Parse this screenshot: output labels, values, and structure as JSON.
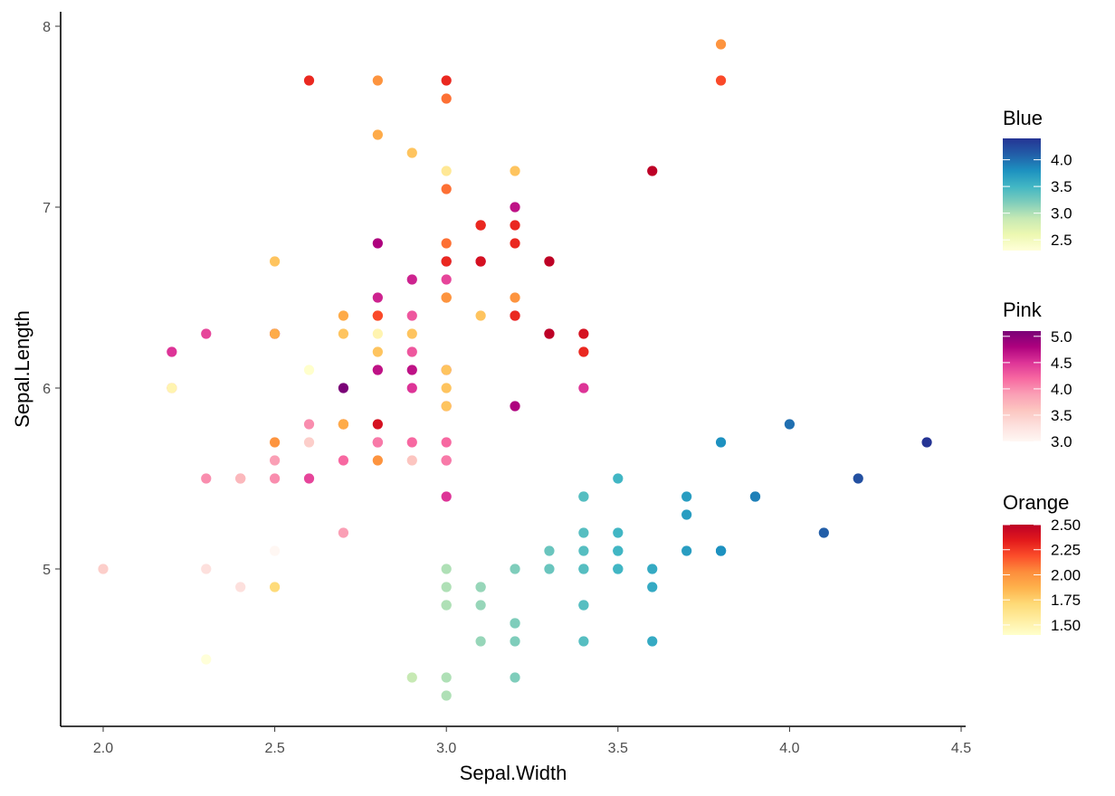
{
  "chart_data": {
    "type": "scatter",
    "xlabel": "Sepal.Width",
    "ylabel": "Sepal.Length",
    "xlim": [
      1.88,
      4.52
    ],
    "ylim": [
      4.13,
      8.08
    ],
    "xticks": [
      "2.0",
      "2.5",
      "3.0",
      "3.5",
      "4.0",
      "4.5"
    ],
    "yticks": [
      "5",
      "6",
      "7",
      "8"
    ],
    "grid": false,
    "legend_position": "right",
    "series": [
      {
        "legend_title": "Blue",
        "palette": [
          "#ffffd9",
          "#edf8b1",
          "#c7e9b4",
          "#7fcdbb",
          "#41b6c4",
          "#1d91c0",
          "#225ea8",
          "#253494"
        ],
        "color_range": [
          2.3,
          4.4
        ],
        "legend_ticks": [
          "2.5",
          "3.0",
          "3.5",
          "4.0"
        ],
        "points": [
          [
            3.5,
            5.1,
            3.5
          ],
          [
            3.0,
            4.9,
            3.0
          ],
          [
            3.2,
            4.7,
            3.2
          ],
          [
            3.1,
            4.6,
            3.1
          ],
          [
            3.6,
            5.0,
            3.6
          ],
          [
            3.9,
            5.4,
            3.9
          ],
          [
            3.4,
            4.6,
            3.4
          ],
          [
            3.4,
            5.0,
            3.4
          ],
          [
            2.9,
            4.4,
            2.9
          ],
          [
            3.1,
            4.9,
            3.1
          ],
          [
            3.7,
            5.4,
            3.7
          ],
          [
            3.4,
            4.8,
            3.4
          ],
          [
            3.0,
            4.8,
            3.0
          ],
          [
            3.0,
            4.3,
            3.0
          ],
          [
            4.0,
            5.8,
            4.0
          ],
          [
            4.4,
            5.7,
            4.4
          ],
          [
            3.9,
            5.4,
            3.9
          ],
          [
            3.5,
            5.1,
            3.5
          ],
          [
            3.8,
            5.7,
            3.8
          ],
          [
            3.8,
            5.1,
            3.8
          ],
          [
            3.4,
            5.4,
            3.4
          ],
          [
            3.7,
            5.1,
            3.7
          ],
          [
            3.6,
            4.6,
            3.6
          ],
          [
            3.3,
            5.1,
            3.3
          ],
          [
            3.4,
            4.8,
            3.4
          ],
          [
            3.0,
            5.0,
            3.0
          ],
          [
            3.4,
            5.0,
            3.4
          ],
          [
            3.5,
            5.2,
            3.5
          ],
          [
            3.4,
            5.2,
            3.4
          ],
          [
            3.2,
            4.7,
            3.2
          ],
          [
            3.1,
            4.8,
            3.1
          ],
          [
            3.4,
            5.4,
            3.4
          ],
          [
            4.1,
            5.2,
            4.1
          ],
          [
            4.2,
            5.5,
            4.2
          ],
          [
            3.1,
            4.9,
            3.1
          ],
          [
            3.2,
            5.0,
            3.2
          ],
          [
            3.5,
            5.5,
            3.5
          ],
          [
            3.6,
            4.9,
            3.6
          ],
          [
            3.0,
            4.4,
            3.0
          ],
          [
            3.4,
            5.1,
            3.4
          ],
          [
            3.5,
            5.0,
            3.5
          ],
          [
            2.3,
            4.5,
            2.3
          ],
          [
            3.2,
            4.4,
            3.2
          ],
          [
            3.5,
            5.0,
            3.5
          ],
          [
            3.8,
            5.1,
            3.8
          ],
          [
            3.0,
            4.8,
            3.0
          ],
          [
            3.8,
            5.1,
            3.8
          ],
          [
            3.2,
            4.6,
            3.2
          ],
          [
            3.7,
            5.3,
            3.7
          ],
          [
            3.3,
            5.0,
            3.3
          ]
        ]
      },
      {
        "legend_title": "Pink",
        "palette": [
          "#fff7f3",
          "#fde0dd",
          "#fcc5c0",
          "#fa9fb5",
          "#f768a1",
          "#dd3497",
          "#ae017e",
          "#7a0177"
        ],
        "color_range": [
          3.0,
          5.1
        ],
        "legend_ticks": [
          "3.0",
          "3.5",
          "4.0",
          "4.5",
          "5.0"
        ],
        "points": [
          [
            3.2,
            7.0,
            4.7
          ],
          [
            3.2,
            6.4,
            4.5
          ],
          [
            3.1,
            6.9,
            4.9
          ],
          [
            2.3,
            5.5,
            4.0
          ],
          [
            2.8,
            6.5,
            4.6
          ],
          [
            2.8,
            5.7,
            4.5
          ],
          [
            3.3,
            6.3,
            4.7
          ],
          [
            2.4,
            4.9,
            3.3
          ],
          [
            2.9,
            6.6,
            4.6
          ],
          [
            2.7,
            5.2,
            3.9
          ],
          [
            2.0,
            5.0,
            3.5
          ],
          [
            3.0,
            5.9,
            4.2
          ],
          [
            2.2,
            6.0,
            4.0
          ],
          [
            2.9,
            6.1,
            4.7
          ],
          [
            2.9,
            5.6,
            3.6
          ],
          [
            3.1,
            6.7,
            4.4
          ],
          [
            3.0,
            5.6,
            4.5
          ],
          [
            2.7,
            5.8,
            4.1
          ],
          [
            2.2,
            6.2,
            4.5
          ],
          [
            2.5,
            5.6,
            3.9
          ],
          [
            3.2,
            5.9,
            4.8
          ],
          [
            2.8,
            6.1,
            4.0
          ],
          [
            2.5,
            6.3,
            4.9
          ],
          [
            2.8,
            6.1,
            4.7
          ],
          [
            2.9,
            6.4,
            4.3
          ],
          [
            3.0,
            6.6,
            4.4
          ],
          [
            2.8,
            6.8,
            4.8
          ],
          [
            3.0,
            6.7,
            5.0
          ],
          [
            2.9,
            6.0,
            4.5
          ],
          [
            2.6,
            5.7,
            3.5
          ],
          [
            2.4,
            5.5,
            3.8
          ],
          [
            2.4,
            5.5,
            3.7
          ],
          [
            2.7,
            5.8,
            3.9
          ],
          [
            2.7,
            6.0,
            5.1
          ],
          [
            3.0,
            5.4,
            4.5
          ],
          [
            3.4,
            6.0,
            4.5
          ],
          [
            3.1,
            6.7,
            4.7
          ],
          [
            2.3,
            6.3,
            4.4
          ],
          [
            3.0,
            5.6,
            4.1
          ],
          [
            2.5,
            5.5,
            4.0
          ],
          [
            2.6,
            5.5,
            4.4
          ],
          [
            3.0,
            6.1,
            4.6
          ],
          [
            2.6,
            5.8,
            4.0
          ],
          [
            2.3,
            5.0,
            3.3
          ],
          [
            2.7,
            5.6,
            4.2
          ],
          [
            3.0,
            5.7,
            4.2
          ],
          [
            2.9,
            5.7,
            4.2
          ],
          [
            2.9,
            6.2,
            4.3
          ],
          [
            2.5,
            5.1,
            3.0
          ],
          [
            2.8,
            5.7,
            4.1
          ]
        ]
      },
      {
        "legend_title": "Orange",
        "palette": [
          "#ffffcc",
          "#ffeda0",
          "#fed976",
          "#feb24c",
          "#fd8d3c",
          "#fc4e2a",
          "#e31a1c",
          "#bd0026"
        ],
        "color_range": [
          1.4,
          2.5
        ],
        "legend_ticks": [
          "1.50",
          "1.75",
          "2.00",
          "2.25",
          "2.50"
        ],
        "points": [
          [
            3.3,
            6.3,
            2.5
          ],
          [
            2.7,
            5.8,
            1.9
          ],
          [
            3.0,
            7.1,
            2.1
          ],
          [
            2.9,
            6.3,
            1.8
          ],
          [
            3.0,
            6.5,
            2.2
          ],
          [
            3.0,
            7.6,
            2.1
          ],
          [
            2.5,
            4.9,
            1.7
          ],
          [
            2.9,
            7.3,
            1.8
          ],
          [
            2.5,
            6.7,
            1.8
          ],
          [
            3.6,
            7.2,
            2.5
          ],
          [
            3.2,
            6.5,
            2.0
          ],
          [
            2.7,
            6.4,
            1.9
          ],
          [
            3.0,
            6.8,
            2.1
          ],
          [
            2.5,
            5.7,
            2.0
          ],
          [
            2.8,
            5.8,
            2.4
          ],
          [
            3.2,
            6.4,
            2.3
          ],
          [
            3.0,
            6.5,
            1.8
          ],
          [
            3.8,
            7.7,
            2.2
          ],
          [
            2.6,
            7.7,
            2.3
          ],
          [
            2.2,
            6.0,
            1.5
          ],
          [
            3.2,
            6.9,
            2.3
          ],
          [
            2.8,
            5.6,
            2.0
          ],
          [
            2.8,
            7.7,
            2.0
          ],
          [
            2.7,
            6.3,
            1.8
          ],
          [
            3.3,
            6.7,
            2.1
          ],
          [
            3.2,
            7.2,
            1.8
          ],
          [
            2.8,
            6.2,
            1.8
          ],
          [
            3.0,
            6.1,
            1.8
          ],
          [
            2.8,
            6.4,
            2.1
          ],
          [
            3.0,
            7.2,
            1.6
          ],
          [
            2.8,
            7.4,
            1.9
          ],
          [
            3.8,
            7.9,
            2.0
          ],
          [
            2.8,
            6.4,
            2.2
          ],
          [
            2.8,
            6.3,
            1.5
          ],
          [
            2.6,
            6.1,
            1.4
          ],
          [
            3.0,
            7.7,
            2.3
          ],
          [
            3.4,
            6.3,
            2.4
          ],
          [
            3.1,
            6.4,
            1.8
          ],
          [
            3.0,
            6.0,
            1.8
          ],
          [
            3.1,
            6.9,
            2.1
          ],
          [
            3.1,
            6.7,
            2.4
          ],
          [
            3.1,
            6.9,
            2.3
          ],
          [
            2.7,
            5.8,
            1.9
          ],
          [
            3.2,
            6.8,
            2.3
          ],
          [
            3.3,
            6.7,
            2.5
          ],
          [
            3.0,
            6.7,
            2.3
          ],
          [
            2.5,
            6.3,
            1.9
          ],
          [
            3.0,
            6.5,
            2.0
          ],
          [
            3.4,
            6.2,
            2.3
          ],
          [
            3.0,
            5.9,
            1.8
          ]
        ]
      }
    ]
  }
}
